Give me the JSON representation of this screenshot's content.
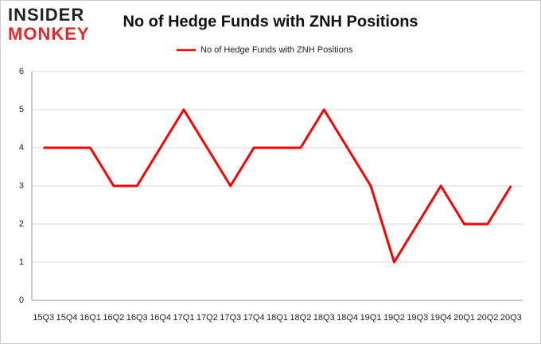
{
  "logo": {
    "line1": "INSIDER",
    "line2": "MONKEY"
  },
  "chart_data": {
    "type": "line",
    "title": "No of Hedge Funds with ZNH Positions",
    "categories": [
      "15Q3",
      "15Q4",
      "16Q1",
      "16Q2",
      "16Q3",
      "16Q4",
      "17Q1",
      "17Q2",
      "17Q3",
      "17Q4",
      "18Q1",
      "18Q2",
      "18Q3",
      "18Q4",
      "19Q1",
      "19Q2",
      "19Q3",
      "19Q4",
      "20Q1",
      "20Q2",
      "20Q3"
    ],
    "series": [
      {
        "name": "No of Hedge Funds with ZNH Positions",
        "color": "#ff0000",
        "values": [
          4,
          4,
          4,
          3,
          3,
          4,
          5,
          4,
          3,
          4,
          4,
          4,
          5,
          4,
          3,
          1,
          2,
          3,
          2,
          2,
          3
        ]
      }
    ],
    "ylim": [
      0,
      6
    ],
    "yticks": [
      0,
      1,
      2,
      3,
      4,
      5,
      6
    ],
    "grid": true,
    "legend": "top"
  }
}
